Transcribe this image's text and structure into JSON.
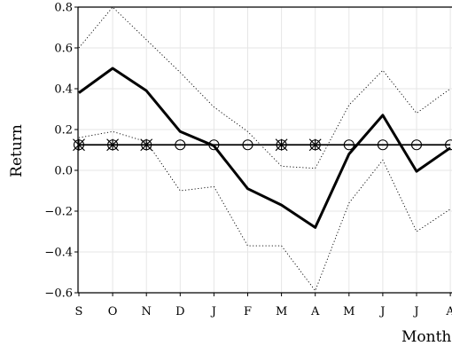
{
  "chart_data": {
    "type": "line",
    "title": "",
    "xlabel": "Month",
    "ylabel": "Return",
    "categories": [
      "S",
      "O",
      "N",
      "D",
      "J",
      "F",
      "M",
      "A",
      "M",
      "J",
      "J",
      "A"
    ],
    "ylim": [
      -0.6,
      0.8
    ],
    "yticks": [
      -0.6,
      -0.4,
      -0.2,
      0.0,
      0.2,
      0.4,
      0.6,
      0.8
    ],
    "ytick_labels": [
      "−0.6",
      "−0.4",
      "−0.2",
      "0.0",
      "0.2",
      "0.4",
      "0.6",
      "0.8"
    ],
    "grid": true,
    "legend": "none",
    "series": [
      {
        "style": "thick-solid",
        "values": [
          0.38,
          0.5,
          0.39,
          0.19,
          0.12,
          -0.09,
          -0.17,
          -0.28,
          0.08,
          0.27,
          -0.005,
          0.11
        ]
      },
      {
        "style": "dotted-upper",
        "values": [
          0.6,
          0.8,
          0.64,
          0.48,
          0.31,
          0.19,
          0.02,
          0.01,
          0.32,
          0.49,
          0.28,
          0.4
        ]
      },
      {
        "style": "dotted-lower",
        "values": [
          0.16,
          0.19,
          0.14,
          -0.1,
          -0.08,
          -0.37,
          -0.37,
          -0.59,
          -0.16,
          0.05,
          -0.3,
          -0.19
        ]
      },
      {
        "style": "reference-level",
        "values": [
          0.125,
          0.125,
          0.125,
          0.125,
          0.125,
          0.125,
          0.125,
          0.125,
          0.125,
          0.125,
          0.125,
          0.125
        ]
      }
    ],
    "circle_markers": [
      true,
      true,
      true,
      true,
      true,
      true,
      true,
      true,
      true,
      true,
      true,
      true
    ],
    "star_markers": [
      true,
      true,
      true,
      false,
      false,
      false,
      true,
      true,
      false,
      false,
      false,
      false
    ]
  }
}
